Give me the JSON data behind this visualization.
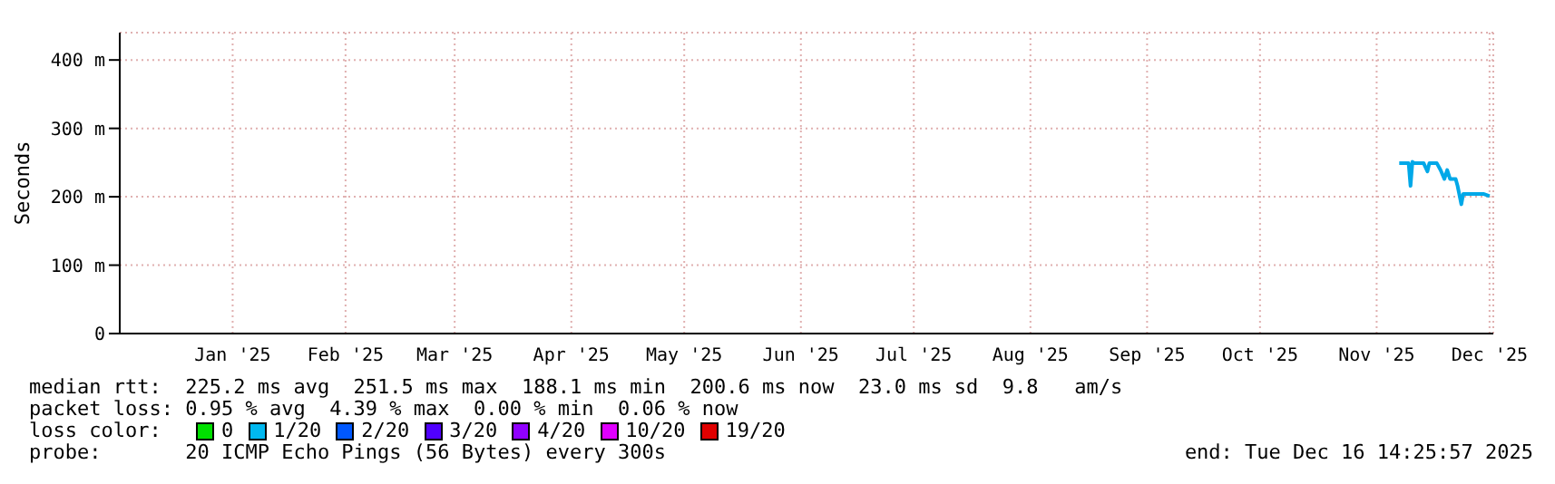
{
  "chart_data": {
    "type": "line",
    "ylabel": "Seconds",
    "x": [
      "2025-11-21",
      "2025-11-23T12:00",
      "2025-11-24",
      "2025-11-24T12:00",
      "2025-11-25",
      "2025-11-27T12:00",
      "2025-11-28T12:00",
      "2025-11-29",
      "2025-12-01",
      "2025-12-02",
      "2025-12-03",
      "2025-12-03T18:00",
      "2025-12-04T12:00",
      "2025-12-06",
      "2025-12-06T12:00",
      "2025-12-07T12:00",
      "2025-12-08",
      "2025-12-13T12:00",
      "2025-12-15"
    ],
    "series": [
      {
        "color": "#00a8e8",
        "values": [
          249,
          249,
          216,
          251,
          249,
          249,
          237,
          249,
          249,
          239,
          226,
          239,
          226,
          226,
          216,
          189,
          204,
          204,
          201
        ]
      }
    ],
    "xlim": [
      "2024-12-16",
      "2025-12-16"
    ],
    "xticks": [
      {
        "value": "2025-01-15",
        "label": "Jan '25"
      },
      {
        "value": "2025-02-14",
        "label": "Feb '25"
      },
      {
        "value": "2025-03-15",
        "label": "Mar '25"
      },
      {
        "value": "2025-04-15",
        "label": "Apr '25"
      },
      {
        "value": "2025-05-15",
        "label": "May '25"
      },
      {
        "value": "2025-06-15",
        "label": "Jun '25"
      },
      {
        "value": "2025-07-15",
        "label": "Jul '25"
      },
      {
        "value": "2025-08-15",
        "label": "Aug '25"
      },
      {
        "value": "2025-09-15",
        "label": "Sep '25"
      },
      {
        "value": "2025-10-15",
        "label": "Oct '25"
      },
      {
        "value": "2025-11-15",
        "label": "Nov '25"
      },
      {
        "value": "2025-12-15",
        "label": "Dec '25"
      }
    ],
    "ylim": [
      0,
      440
    ],
    "yticks": [
      0,
      {
        "value": 100,
        "label": "100 m"
      },
      {
        "value": 200,
        "label": "200 m"
      },
      {
        "value": 300,
        "label": "300 m"
      },
      {
        "value": 400,
        "label": "400 m"
      }
    ],
    "grid": true,
    "marker": "none",
    "line_style": "solid",
    "legend": false,
    "annotations": [
      "median rtt:  225.2 ms avg  251.5 ms max  188.1 ms min  200.6 ms now  23.0 ms sd  9.8   am/s",
      "packet loss: 0.95 % avg  4.39 % max  0.00 % min  0.06 % now",
      "loss color:",
      "0",
      "1/20",
      "2/20",
      "3/20",
      "4/20",
      "10/20",
      "19/20",
      "probe:       20 ICMP Echo Pings (56 Bytes) every 300s",
      "end: Tue Dec 16 14:25:57 2025"
    ]
  }
}
